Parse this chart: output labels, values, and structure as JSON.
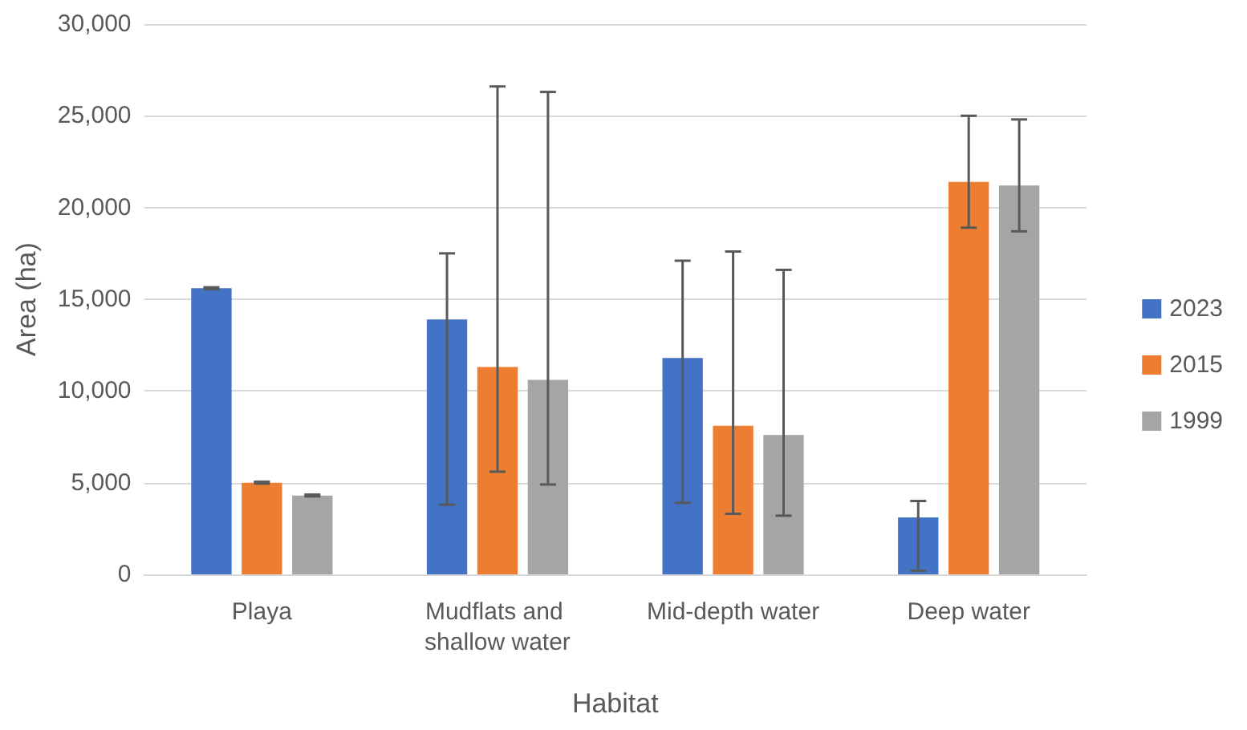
{
  "chart_data": {
    "type": "bar",
    "xlabel": "Habitat",
    "ylabel": "Area (ha)",
    "categories": [
      "Playa",
      "Mudflats and shallow water",
      "Mid-depth water",
      "Deep water"
    ],
    "series": [
      {
        "name": "2023",
        "color": "#4472c4",
        "values": [
          15600,
          13900,
          11800,
          3100
        ],
        "errors": [
          50,
          [
            3800,
            17500
          ],
          [
            3900,
            17100
          ],
          [
            200,
            4000
          ]
        ]
      },
      {
        "name": "2015",
        "color": "#ed7d31",
        "values": [
          5000,
          11300,
          8100,
          21400
        ],
        "errors": [
          50,
          [
            5600,
            26600
          ],
          [
            3300,
            17600
          ],
          [
            18900,
            25000
          ]
        ]
      },
      {
        "name": "1999",
        "color": "#a5a5a5",
        "values": [
          4300,
          10600,
          7600,
          21200
        ],
        "errors": [
          50,
          [
            4900,
            26300
          ],
          [
            3200,
            16600
          ],
          [
            18700,
            24800
          ]
        ]
      }
    ],
    "ylim": [
      0,
      30000
    ],
    "yticks": [
      0,
      {
        "value": 5000,
        "label": "5,000"
      },
      {
        "value": 10000,
        "label": "10,000"
      },
      {
        "value": 15000,
        "label": "15,000"
      },
      {
        "value": 20000,
        "label": "20,000"
      },
      {
        "value": 25000,
        "label": "25,000"
      },
      {
        "value": 30000,
        "label": "30,000"
      }
    ],
    "grid": "y",
    "legend": "right"
  }
}
